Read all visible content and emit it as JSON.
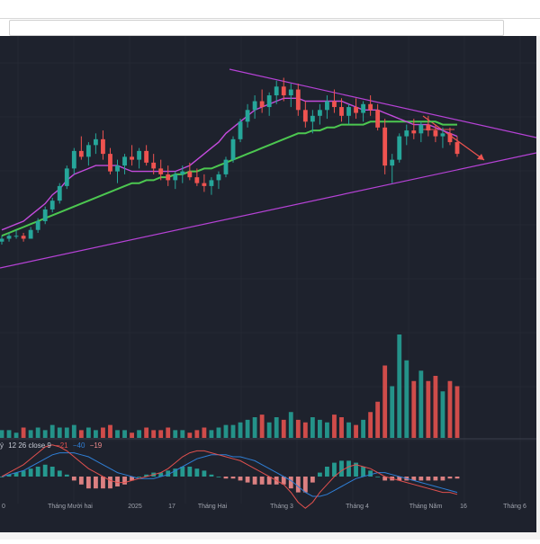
{
  "macd_legend": {
    "prefix": "ý",
    "params": "12 26 close 9",
    "macd": "−21",
    "signal": "−40",
    "hist": "−19",
    "colors": {
      "macd": "#e0504e",
      "signal": "#2f7fd6",
      "hist": "#ef8b8b",
      "params": "#c8ccd6"
    }
  },
  "x_axis_labels": [
    "0",
    "Tháng Mười hai",
    "2025",
    "17",
    "Tháng Hai",
    "Tháng 3",
    "Tháng 4",
    "Tháng Năm",
    "16",
    "Tháng 6"
  ],
  "colors": {
    "background": "#1e222d",
    "up": "#26a69a",
    "down": "#ef5350",
    "ma_fast": "#c34bdc",
    "ma_slow": "#4cc750",
    "trendline": "#b642d6",
    "arrow": "#ef5350",
    "grid": "#2a2e39"
  },
  "chart_data": {
    "type": "candlestick",
    "title": "",
    "note": "Price series read from on-screen candles; no price axis visible",
    "candles": [
      [
        10,
        12,
        9,
        11
      ],
      [
        11,
        13,
        10,
        12
      ],
      [
        12,
        14,
        11,
        12
      ],
      [
        12,
        13,
        10,
        11
      ],
      [
        11,
        15,
        11,
        14
      ],
      [
        14,
        18,
        13,
        17
      ],
      [
        17,
        22,
        16,
        21
      ],
      [
        21,
        25,
        20,
        24
      ],
      [
        24,
        30,
        23,
        29
      ],
      [
        29,
        36,
        28,
        35
      ],
      [
        35,
        42,
        33,
        41
      ],
      [
        41,
        46,
        38,
        39
      ],
      [
        39,
        44,
        36,
        43
      ],
      [
        43,
        47,
        40,
        45
      ],
      [
        45,
        48,
        38,
        40
      ],
      [
        40,
        42,
        33,
        34
      ],
      [
        34,
        38,
        30,
        36
      ],
      [
        36,
        40,
        33,
        39
      ],
      [
        39,
        43,
        36,
        38
      ],
      [
        38,
        42,
        35,
        41
      ],
      [
        41,
        43,
        36,
        37
      ],
      [
        37,
        40,
        33,
        35
      ],
      [
        35,
        38,
        31,
        33
      ],
      [
        33,
        36,
        29,
        31
      ],
      [
        31,
        34,
        28,
        33
      ],
      [
        33,
        36,
        30,
        34
      ],
      [
        34,
        37,
        31,
        32
      ],
      [
        32,
        35,
        29,
        30
      ],
      [
        30,
        33,
        27,
        29
      ],
      [
        29,
        32,
        26,
        31
      ],
      [
        31,
        34,
        28,
        33
      ],
      [
        33,
        39,
        32,
        38
      ],
      [
        38,
        46,
        37,
        45
      ],
      [
        45,
        52,
        44,
        51
      ],
      [
        51,
        57,
        49,
        55
      ],
      [
        55,
        60,
        52,
        58
      ],
      [
        58,
        62,
        54,
        56
      ],
      [
        56,
        61,
        53,
        60
      ],
      [
        60,
        65,
        57,
        63
      ],
      [
        63,
        66,
        58,
        60
      ],
      [
        60,
        64,
        56,
        62
      ],
      [
        62,
        64,
        53,
        55
      ],
      [
        55,
        58,
        49,
        51
      ],
      [
        51,
        55,
        47,
        53
      ],
      [
        53,
        57,
        50,
        55
      ],
      [
        55,
        60,
        52,
        58
      ],
      [
        58,
        62,
        54,
        56
      ],
      [
        56,
        59,
        51,
        53
      ],
      [
        53,
        57,
        50,
        56
      ],
      [
        56,
        59,
        52,
        54
      ],
      [
        54,
        58,
        51,
        57
      ],
      [
        57,
        60,
        53,
        55
      ],
      [
        55,
        57,
        48,
        49
      ],
      [
        49,
        52,
        33,
        36
      ],
      [
        36,
        40,
        30,
        38
      ],
      [
        38,
        47,
        37,
        46
      ],
      [
        46,
        50,
        43,
        48
      ],
      [
        48,
        52,
        45,
        47
      ],
      [
        47,
        51,
        44,
        50
      ],
      [
        50,
        53,
        46,
        48
      ],
      [
        48,
        50,
        44,
        46
      ],
      [
        46,
        49,
        42,
        47
      ],
      [
        47,
        49,
        43,
        44
      ],
      [
        44,
        46,
        39,
        40
      ]
    ],
    "volume": [
      3,
      3,
      2,
      4,
      3,
      4,
      3,
      5,
      4,
      4,
      5,
      3,
      4,
      3,
      4,
      5,
      3,
      3,
      2,
      3,
      4,
      3,
      3,
      4,
      3,
      3,
      2,
      3,
      4,
      3,
      4,
      5,
      5,
      6,
      7,
      8,
      9,
      6,
      8,
      7,
      10,
      7,
      6,
      8,
      7,
      6,
      9,
      8,
      6,
      5,
      7,
      10,
      14,
      28,
      20,
      40,
      30,
      22,
      26,
      22,
      24,
      18,
      22,
      20
    ],
    "ma_fast": [
      14,
      15,
      16,
      17,
      19,
      21,
      23,
      26,
      28,
      31,
      33,
      34,
      35,
      36,
      36,
      36,
      36,
      35,
      34,
      34,
      34,
      34,
      34,
      34,
      34,
      35,
      36,
      38,
      40,
      42,
      44,
      47,
      49,
      51,
      53,
      55,
      56,
      57,
      58,
      59,
      59,
      59,
      58,
      58,
      58,
      58,
      58,
      58,
      57,
      56,
      55,
      55,
      55,
      54,
      53,
      52,
      51,
      50,
      50,
      50,
      49,
      48,
      47,
      46
    ],
    "ma_slow": [
      12,
      13,
      14,
      15,
      16,
      17,
      18,
      19,
      20,
      21,
      22,
      23,
      24,
      25,
      26,
      27,
      28,
      29,
      30,
      30,
      31,
      31,
      32,
      32,
      33,
      33,
      34,
      34,
      35,
      35,
      36,
      37,
      38,
      39,
      40,
      41,
      42,
      43,
      44,
      45,
      46,
      47,
      47,
      48,
      48,
      49,
      49,
      50,
      50,
      50,
      50,
      51,
      51,
      51,
      51,
      51,
      51,
      51,
      51,
      51,
      51,
      50,
      50,
      50
    ],
    "macd": [
      0,
      2,
      4,
      6,
      9,
      12,
      15,
      16,
      15,
      13,
      10,
      7,
      4,
      2,
      0,
      -2,
      -3,
      -3,
      -2,
      -1,
      0,
      1,
      2,
      4,
      7,
      10,
      12,
      13,
      13,
      12,
      11,
      10,
      9,
      8,
      6,
      4,
      2,
      0,
      -2,
      -4,
      -8,
      -13,
      -16,
      -13,
      -8,
      -4,
      0,
      3,
      5,
      6,
      5,
      4,
      2,
      0,
      -1,
      -2,
      -3,
      -4,
      -5,
      -6,
      -7,
      -8,
      -8,
      -9
    ],
    "signal": [
      0,
      1,
      2,
      3,
      5,
      7,
      9,
      11,
      12,
      12,
      12,
      11,
      10,
      8,
      6,
      4,
      2,
      1,
      0,
      -1,
      -1,
      -1,
      0,
      1,
      3,
      5,
      7,
      9,
      10,
      11,
      11,
      11,
      10,
      10,
      9,
      8,
      6,
      4,
      2,
      0,
      -2,
      -5,
      -8,
      -10,
      -10,
      -9,
      -7,
      -5,
      -3,
      -1,
      0,
      1,
      2,
      2,
      1,
      0,
      -1,
      -2,
      -3,
      -4,
      -5,
      -6,
      -7,
      -8
    ],
    "hist": [
      0,
      1,
      2,
      3,
      4,
      5,
      6,
      5,
      3,
      1,
      -2,
      -4,
      -6,
      -6,
      -6,
      -6,
      -5,
      -4,
      -2,
      0,
      1,
      2,
      2,
      3,
      4,
      5,
      5,
      4,
      3,
      1,
      0,
      -1,
      -1,
      -2,
      -3,
      -4,
      -4,
      -4,
      -4,
      -4,
      -6,
      -8,
      -8,
      -3,
      2,
      5,
      7,
      8,
      8,
      7,
      5,
      3,
      0,
      -2,
      -2,
      -2,
      -2,
      -2,
      -2,
      -2,
      -2,
      -2,
      -1,
      -1
    ]
  }
}
